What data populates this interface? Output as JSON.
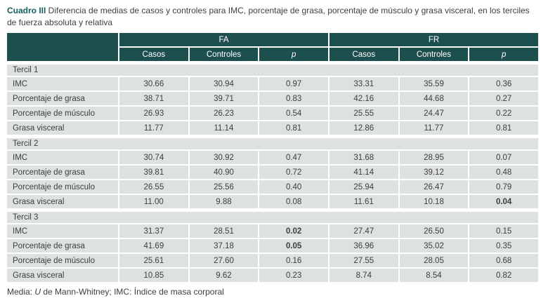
{
  "title": {
    "number": "Cuadro III",
    "text": " Diferencia de medias de casos y controles para IMC, porcentaje de grasa, porcentaje de músculo y grasa visceral, en los terciles de fuerza absoluta y relativa"
  },
  "colors": {
    "accent": "#136158",
    "header_bg": "#1d4f4f",
    "row_bg": "#dde1df",
    "text": "#3e3e3e"
  },
  "table": {
    "group_headers": [
      "FA",
      "FR"
    ],
    "sub_headers": [
      {
        "label": "Casos",
        "italic": false
      },
      {
        "label": "Controles",
        "italic": false
      },
      {
        "label": "p",
        "italic": true
      },
      {
        "label": "Casos",
        "italic": false
      },
      {
        "label": "Controles",
        "italic": false
      },
      {
        "label": "p",
        "italic": true
      }
    ],
    "sections": [
      {
        "name": "Tercil 1",
        "rows": [
          {
            "label": "IMC",
            "values": [
              "30.66",
              "30.94",
              "0.97",
              "33.31",
              "35.59",
              "0.36"
            ],
            "bold": []
          },
          {
            "label": "Porcentaje de grasa",
            "values": [
              "38.71",
              "39.71",
              "0.83",
              "42.16",
              "44.68",
              "0.27"
            ],
            "bold": []
          },
          {
            "label": "Porcentaje de músculo",
            "values": [
              "26.93",
              "26.23",
              "0.54",
              "25.55",
              "24.47",
              "0.22"
            ],
            "bold": []
          },
          {
            "label": "Grasa visceral",
            "values": [
              "11.77",
              "11.14",
              "0.81",
              "12.86",
              "11.77",
              "0.81"
            ],
            "bold": []
          }
        ]
      },
      {
        "name": "Tercil 2",
        "rows": [
          {
            "label": "IMC",
            "values": [
              "30.74",
              "30.92",
              "0.47",
              "31.68",
              "28.95",
              "0.07"
            ],
            "bold": []
          },
          {
            "label": "Porcentaje de grasa",
            "values": [
              "39.81",
              "40.90",
              "0.72",
              "41.14",
              "39.12",
              "0.48"
            ],
            "bold": []
          },
          {
            "label": "Porcentaje de músculo",
            "values": [
              "26.55",
              "25.56",
              "0.40",
              "25.94",
              "26.47",
              "0.79"
            ],
            "bold": []
          },
          {
            "label": "Grasa visceral",
            "values": [
              "11.00",
              "9.88",
              "0.08",
              "11.61",
              "10.18",
              "0.04"
            ],
            "bold": [
              5
            ]
          }
        ]
      },
      {
        "name": "Tercil 3",
        "rows": [
          {
            "label": "IMC",
            "values": [
              "31.37",
              "28.51",
              "0.02",
              "27.47",
              "26.50",
              "0.15"
            ],
            "bold": [
              2
            ]
          },
          {
            "label": "Porcentaje de grasa",
            "values": [
              "41.69",
              "37.18",
              "0.05",
              "36.96",
              "35.02",
              "0.35"
            ],
            "bold": [
              2
            ]
          },
          {
            "label": "Porcentaje de músculo",
            "values": [
              "25.61",
              "27.60",
              "0.16",
              "27.55",
              "28.05",
              "0.68"
            ],
            "bold": []
          },
          {
            "label": "Grasa visceral",
            "values": [
              "10.85",
              "9.62",
              "0.23",
              "8.74",
              "8.54",
              "0.82"
            ],
            "bold": []
          }
        ]
      }
    ]
  },
  "footnote": {
    "prefix": "Media: ",
    "italic_term": "U",
    "rest": " de Mann-Whitney; IMC: Índice de masa corporal"
  }
}
